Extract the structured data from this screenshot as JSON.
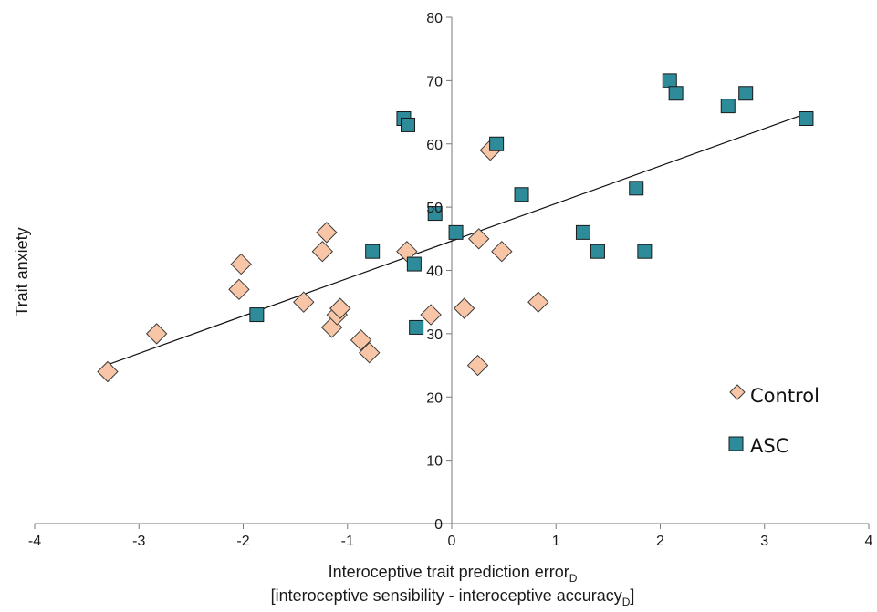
{
  "chart_data": {
    "type": "scatter",
    "ylabel": "Trait anxiety",
    "xlabel_main": "Interoceptive trait prediction error",
    "xlabel_main_sub": "D",
    "xlabel_second_a": "[interoceptive sensibility - interoceptive accuracy",
    "xlabel_second_sub": "D",
    "xlabel_second_b": "]",
    "xlim": [
      -4,
      4
    ],
    "ylim": [
      0,
      80
    ],
    "x_ticks": [
      -4,
      -3,
      -2,
      -1,
      0,
      1,
      2,
      3,
      4
    ],
    "y_ticks": [
      0,
      10,
      20,
      30,
      40,
      50,
      60,
      70,
      80
    ],
    "x_tick_labels": [
      "-4",
      "-3",
      "-2",
      "-1",
      "0",
      "1",
      "2",
      "3",
      "4"
    ],
    "y_tick_labels": [
      "0",
      "10",
      "20",
      "30",
      "40",
      "50",
      "60",
      "70",
      "80"
    ],
    "grid": false,
    "legend_position": "bottom-right",
    "trendline": {
      "x": [
        -3.3,
        3.4
      ],
      "y": [
        25.1,
        64.8
      ]
    },
    "series": [
      {
        "name": "Control",
        "marker": "diamond",
        "color": "#F8C6A6",
        "edge_color": "#3a3a3a",
        "points": [
          {
            "x": -3.3,
            "y": 24
          },
          {
            "x": -2.83,
            "y": 30
          },
          {
            "x": -2.02,
            "y": 41
          },
          {
            "x": -2.04,
            "y": 37
          },
          {
            "x": -1.42,
            "y": 35
          },
          {
            "x": -1.2,
            "y": 46
          },
          {
            "x": -1.24,
            "y": 43
          },
          {
            "x": -1.15,
            "y": 31
          },
          {
            "x": -1.1,
            "y": 33
          },
          {
            "x": -1.07,
            "y": 34
          },
          {
            "x": -0.87,
            "y": 29
          },
          {
            "x": -0.79,
            "y": 27
          },
          {
            "x": -0.43,
            "y": 43
          },
          {
            "x": -0.2,
            "y": 33
          },
          {
            "x": 0.12,
            "y": 34
          },
          {
            "x": 0.26,
            "y": 45
          },
          {
            "x": 0.25,
            "y": 25
          },
          {
            "x": 0.37,
            "y": 59
          },
          {
            "x": 0.48,
            "y": 43
          },
          {
            "x": 0.83,
            "y": 35
          }
        ]
      },
      {
        "name": "ASC",
        "marker": "square",
        "color": "#2E8B9A",
        "edge_color": "#1a1a1a",
        "points": [
          {
            "x": -1.87,
            "y": 33
          },
          {
            "x": -0.76,
            "y": 43
          },
          {
            "x": -0.46,
            "y": 64
          },
          {
            "x": -0.42,
            "y": 63
          },
          {
            "x": -0.36,
            "y": 41
          },
          {
            "x": -0.34,
            "y": 31
          },
          {
            "x": -0.16,
            "y": 49
          },
          {
            "x": 0.04,
            "y": 46
          },
          {
            "x": 0.43,
            "y": 60
          },
          {
            "x": 0.67,
            "y": 52
          },
          {
            "x": 1.26,
            "y": 46
          },
          {
            "x": 1.4,
            "y": 43
          },
          {
            "x": 1.77,
            "y": 53
          },
          {
            "x": 1.85,
            "y": 43
          },
          {
            "x": 2.09,
            "y": 70
          },
          {
            "x": 2.15,
            "y": 68
          },
          {
            "x": 2.65,
            "y": 66
          },
          {
            "x": 2.82,
            "y": 68
          },
          {
            "x": 3.4,
            "y": 64
          }
        ]
      }
    ]
  }
}
